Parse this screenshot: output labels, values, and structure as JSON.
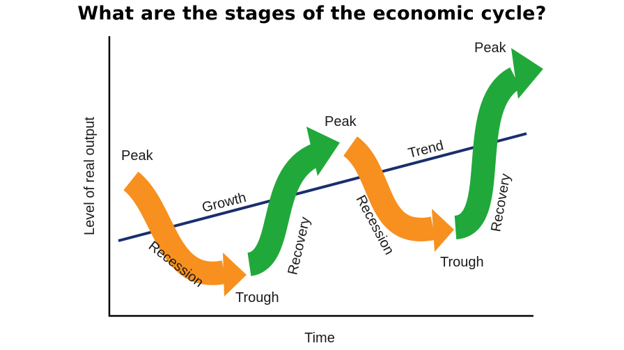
{
  "title": "What are the stages of the economic cycle?",
  "axes": {
    "y_label": "Level of real output",
    "x_label": "Time"
  },
  "labels": {
    "peak_1": "Peak",
    "peak_2": "Peak",
    "peak_3": "Peak",
    "recession_1": "Recession",
    "recession_2": "Recession",
    "trough_1": "Trough",
    "trough_2": "Trough",
    "recovery_1": "Recovery",
    "recovery_2": "Recovery",
    "growth": "Growth",
    "trend": "Trend"
  },
  "colors": {
    "recession": "#F7901E",
    "recovery": "#21A83A",
    "trend_line": "#1A2E6E",
    "axis": "#000000"
  }
}
